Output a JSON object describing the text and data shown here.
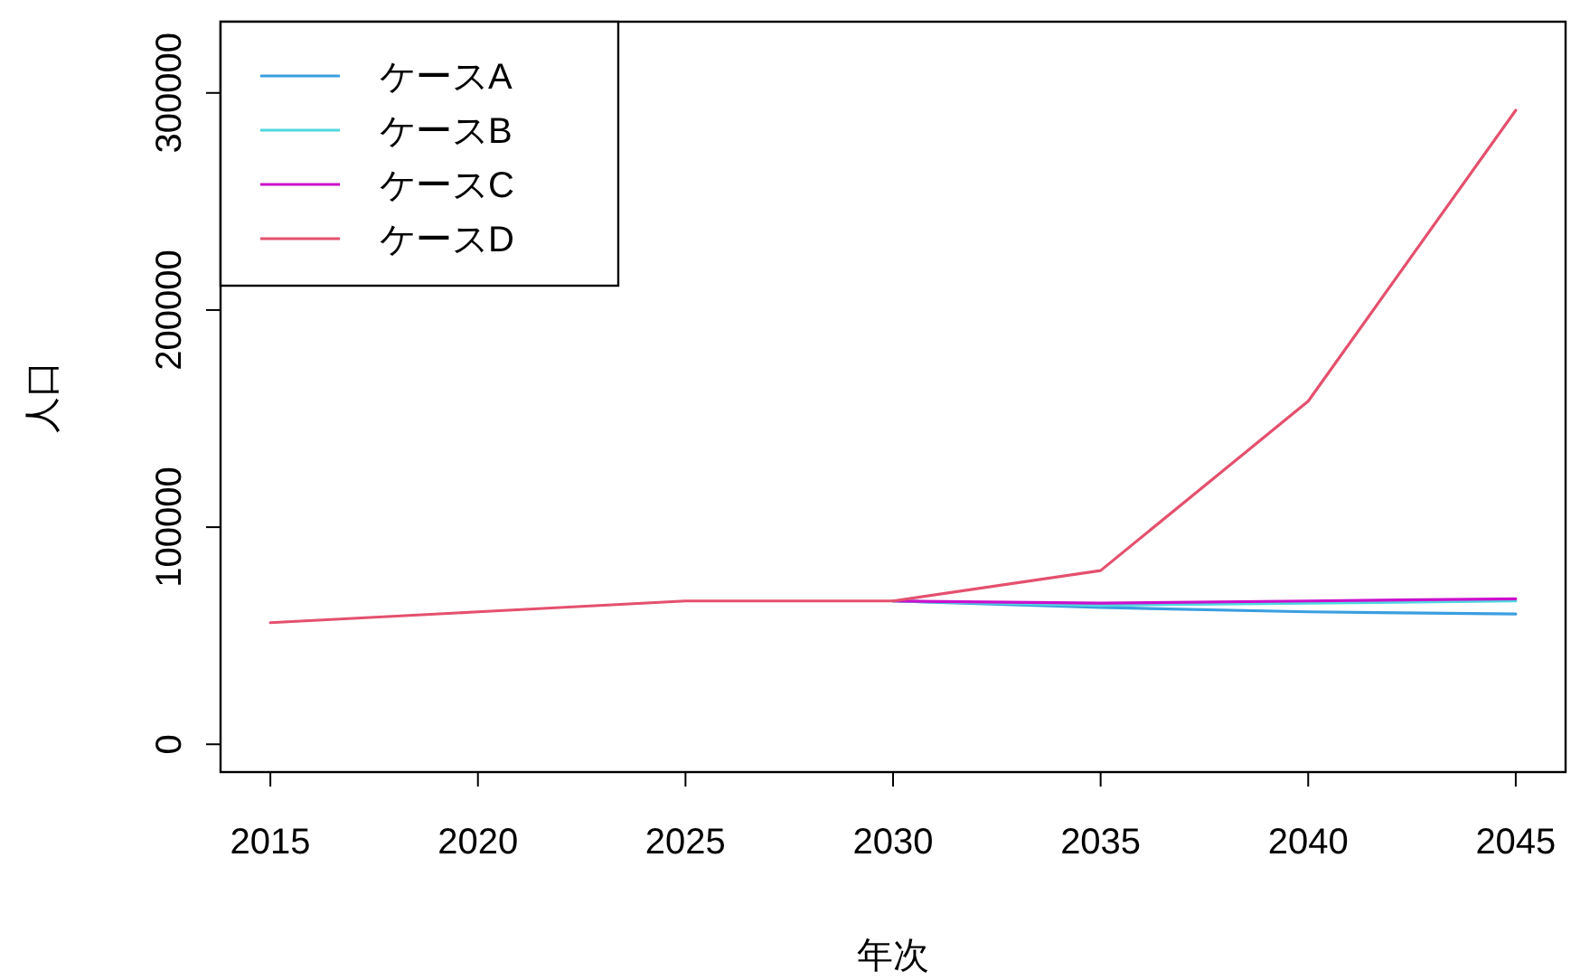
{
  "chart_data": {
    "type": "line",
    "xlabel": "年次",
    "ylabel": "人口",
    "x": [
      2015,
      2020,
      2025,
      2030,
      2035,
      2040,
      2045
    ],
    "series": [
      {
        "name": "ケースA",
        "color": "#3b9ee0",
        "values": [
          null,
          null,
          null,
          66000,
          63000,
          61000,
          60000
        ]
      },
      {
        "name": "ケースB",
        "color": "#4fd8e0",
        "values": [
          null,
          null,
          null,
          66000,
          64000,
          65000,
          66000
        ]
      },
      {
        "name": "ケースC",
        "color": "#cc10cc",
        "values": [
          null,
          null,
          null,
          66000,
          65000,
          66000,
          67000
        ]
      },
      {
        "name": "ケースD",
        "color": "#e4506e",
        "values": [
          56000,
          61000,
          66000,
          66000,
          80000,
          158000,
          292000
        ]
      }
    ],
    "xlim": [
      2013.8,
      2046.2
    ],
    "ylim": [
      -12800,
      332800
    ],
    "xticks": [
      2015,
      2020,
      2025,
      2030,
      2035,
      2040,
      2045
    ],
    "yticks": [
      0,
      100000,
      200000,
      300000
    ],
    "legend": "top left",
    "grid": false,
    "marker": "none",
    "line_style": "solid"
  }
}
